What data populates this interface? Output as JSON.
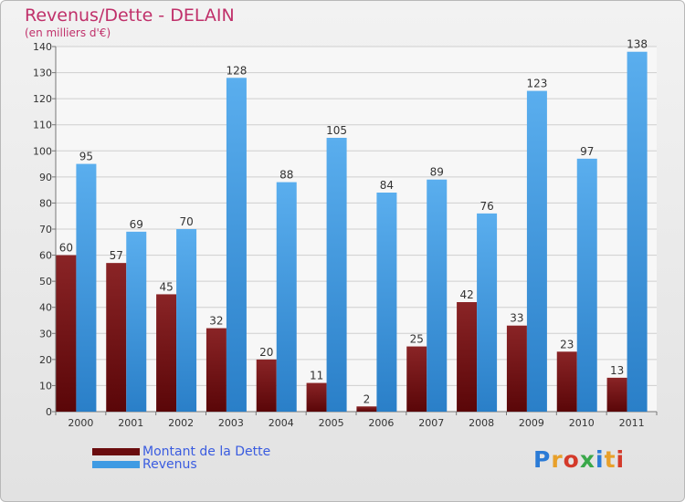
{
  "header": {
    "title": "Revenus/Dette - DELAIN",
    "subtitle": "(en milliers d'€)"
  },
  "legend": {
    "dette_label": "Montant de la Dette",
    "revenus_label": "Revenus"
  },
  "logo": {
    "text": "Proxiti",
    "letter_colors": [
      "#2b7bd6",
      "#e8a02a",
      "#d43a2a",
      "#3aa84a",
      "#2b7bd6",
      "#e8a02a",
      "#d43a2a"
    ]
  },
  "colors": {
    "dette": "#7a1416",
    "revenus": "#3f9be3",
    "title": "#c0306a"
  },
  "chart_data": {
    "type": "bar",
    "categories": [
      "2000",
      "2001",
      "2002",
      "2003",
      "2004",
      "2005",
      "2006",
      "2007",
      "2008",
      "2009",
      "2010",
      "2011"
    ],
    "series": [
      {
        "name": "Montant de la Dette",
        "values": [
          60,
          57,
          45,
          32,
          20,
          11,
          2,
          25,
          42,
          33,
          23,
          13
        ]
      },
      {
        "name": "Revenus",
        "values": [
          95,
          69,
          70,
          128,
          88,
          105,
          84,
          89,
          76,
          123,
          97,
          138
        ]
      }
    ],
    "title": "Revenus/Dette - DELAIN",
    "subtitle": "(en milliers d'€)",
    "xlabel": "",
    "ylabel": "",
    "ylim": [
      0,
      140
    ],
    "yticks": [
      0,
      10,
      20,
      30,
      40,
      50,
      60,
      70,
      80,
      90,
      100,
      110,
      120,
      130,
      140
    ],
    "grid": true,
    "legend_position": "bottom-left"
  }
}
